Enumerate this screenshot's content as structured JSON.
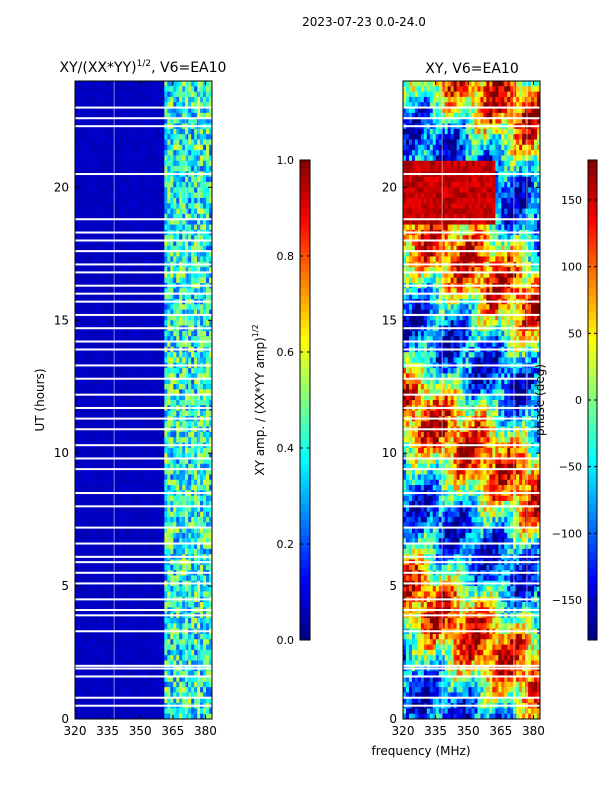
{
  "figure": {
    "suptitle": "2023-07-23 0.0-24.0",
    "xlabel": "frequency (MHz)"
  },
  "chart_data": [
    {
      "type": "heatmap",
      "title": "XY/(XX*YY)^{1/2}, V6=EA10",
      "title_main": "XY/(XX*YY)",
      "title_sup": "1/2",
      "title_tail": ", V6=EA10",
      "ylabel": "UT (hours)",
      "xlim": [
        320,
        383
      ],
      "ylim": [
        0,
        24
      ],
      "xticks": [
        320,
        335,
        350,
        365,
        380
      ],
      "yticks": [
        0,
        5,
        10,
        15,
        20
      ],
      "colormap": "jet",
      "colorbar": {
        "label": "XY amp. / (XX*YY amp)^{1/2}",
        "label_main": "XY amp. / (XX*YY amp)",
        "label_sup": "1/2",
        "range": [
          0.0,
          1.0
        ],
        "ticks": [
          "0.0",
          "0.2",
          "0.4",
          "0.6",
          "0.8",
          "1.0"
        ],
        "tick_values": [
          0.0,
          0.2,
          0.4,
          0.6,
          0.8,
          1.0
        ]
      },
      "description_values": {
        "low_band_value": 0.05,
        "high_band_value_range": [
          0.2,
          0.6
        ],
        "high_band_start_mhz": 361
      }
    },
    {
      "type": "heatmap",
      "title": "XY, V6=EA10",
      "xlim": [
        320,
        383
      ],
      "ylim": [
        0,
        24
      ],
      "xticks": [
        320,
        335,
        350,
        365,
        380
      ],
      "yticks": [
        0,
        5,
        10,
        15,
        20
      ],
      "colormap": "jet",
      "colorbar": {
        "label": "phase (deg)",
        "range": [
          -180,
          180
        ],
        "ticks": [
          "150",
          "100",
          "50",
          "0",
          "−50",
          "−100",
          "−150"
        ],
        "tick_values": [
          150,
          100,
          50,
          0,
          -50,
          -100,
          -150
        ]
      }
    }
  ],
  "colors": {
    "jet_low": "#00007f",
    "jet_high": "#7f0000",
    "background": "#ffffff"
  }
}
